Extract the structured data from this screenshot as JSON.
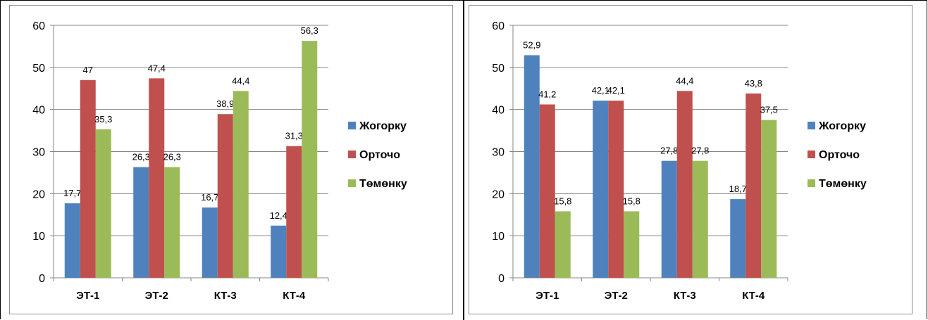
{
  "chart_data": [
    {
      "type": "bar",
      "categories": [
        "ЭТ-1",
        "ЭТ-2",
        "КТ-3",
        "КТ-4"
      ],
      "series": [
        {
          "name": "Жогорку",
          "values": [
            17.7,
            26.3,
            16.7,
            12.4
          ],
          "labels": [
            "17,7",
            "26,3",
            "16,7",
            "12,4"
          ]
        },
        {
          "name": "Орточо",
          "values": [
            47,
            47.4,
            38.9,
            31.3
          ],
          "labels": [
            "47",
            "47,4",
            "38,9",
            "31,3"
          ]
        },
        {
          "name": "Төмөнку",
          "values": [
            35.3,
            26.3,
            44.4,
            56.3
          ],
          "labels": [
            "35,3",
            "26,3",
            "44,4",
            "56,3"
          ]
        }
      ],
      "yticks": [
        "0",
        "10",
        "20",
        "30",
        "40",
        "50",
        "60"
      ],
      "ylim": [
        0,
        60
      ],
      "grid": true,
      "legend": "right",
      "colors": [
        "#4f81bd",
        "#c0504d",
        "#9bbb59"
      ]
    },
    {
      "type": "bar",
      "categories": [
        "ЭТ-1",
        "ЭТ-2",
        "КТ-3",
        "КТ-4"
      ],
      "series": [
        {
          "name": "Жогорку",
          "values": [
            52.9,
            42.1,
            27.8,
            18.7
          ],
          "labels": [
            "52,9",
            "42,1",
            "27,8",
            "18,7"
          ]
        },
        {
          "name": "Орточо",
          "values": [
            41.2,
            42.1,
            44.4,
            43.8
          ],
          "labels": [
            "41,2",
            "42,1",
            "44,4",
            "43,8"
          ]
        },
        {
          "name": "Төмөнку",
          "values": [
            15.8,
            15.8,
            27.8,
            37.5
          ],
          "labels": [
            "15,8",
            "15,8",
            "27,8",
            "37,5"
          ]
        }
      ],
      "yticks": [
        "0",
        "10",
        "20",
        "30",
        "40",
        "50",
        "60"
      ],
      "ylim": [
        0,
        60
      ],
      "grid": true,
      "legend": "right",
      "colors": [
        "#4f81bd",
        "#c0504d",
        "#9bbb59"
      ]
    }
  ]
}
